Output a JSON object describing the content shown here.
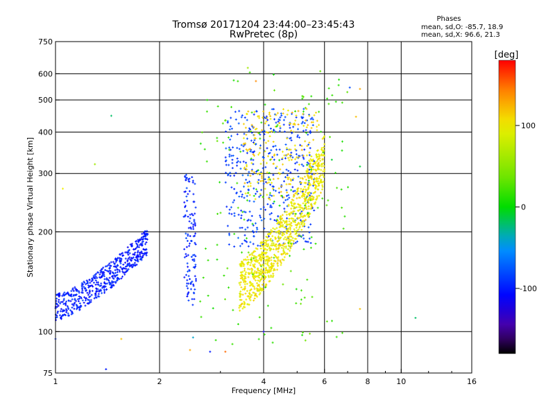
{
  "chart_data": {
    "type": "scatter",
    "title": "Tromsø 20171204 23:44:00–23:45:43",
    "subtitle": "RwPretec (8p)",
    "xlabel": "Frequency [MHz]",
    "ylabel": "Stationary phase Virtual Height [km]",
    "x_scale": "log",
    "y_scale": "log",
    "xlim": [
      1,
      16
    ],
    "ylim": [
      75,
      750
    ],
    "x_ticks": [
      1,
      2,
      4,
      6,
      8,
      10,
      16
    ],
    "y_ticks": [
      75,
      100,
      200,
      300,
      400,
      500,
      600,
      750
    ],
    "x_gridlines": [
      2,
      4,
      6,
      8,
      10
    ],
    "y_gridlines": [
      100,
      200,
      300,
      400,
      500,
      600
    ],
    "grid": true,
    "phase_stats": {
      "heading": "Phases",
      "o_line": "mean, sd,O: -85.7, 18.9",
      "x_line": "mean, sd,X:  96.6, 21.3"
    },
    "colorbar": {
      "label": "[deg]",
      "range": [
        -180,
        180
      ],
      "ticks": [
        100,
        0,
        -100
      ],
      "colors": [
        "#ff0000",
        "#ff8000",
        "#ffff00",
        "#00ff00",
        "#00ffff",
        "#0000ff",
        "#5000a0",
        "#000000"
      ]
    },
    "clusters": [
      {
        "name": "o-trace-low",
        "phase": -100,
        "f": [
          1.0,
          1.85
        ],
        "h": [
          108,
          200
        ],
        "n": 550,
        "shape": "rising"
      },
      {
        "name": "o-trace-mid",
        "phase": -95,
        "f": [
          2.35,
          2.55
        ],
        "h": [
          120,
          300
        ],
        "n": 120,
        "shape": "band"
      },
      {
        "name": "o-trace-f",
        "phase": -85,
        "f": [
          3.1,
          5.6
        ],
        "h": [
          180,
          470
        ],
        "n": 420,
        "shape": "cloud"
      },
      {
        "name": "x-trace-f",
        "phase": 100,
        "f": [
          3.4,
          6.0
        ],
        "h": [
          115,
          370
        ],
        "n": 900,
        "shape": "rising"
      },
      {
        "name": "x-trace-upper",
        "phase": 110,
        "f": [
          3.5,
          5.8
        ],
        "h": [
          250,
          470
        ],
        "n": 220,
        "shape": "cloud"
      },
      {
        "name": "mixed-scatter",
        "phase": 20,
        "f": [
          2.6,
          7.2
        ],
        "h": [
          90,
          620
        ],
        "n": 160,
        "shape": "cloud"
      }
    ],
    "isolated_points": [
      {
        "f": 1.45,
        "h": 448,
        "phase": -20
      },
      {
        "f": 1.3,
        "h": 320,
        "phase": 60
      },
      {
        "f": 1.55,
        "h": 95,
        "phase": 120
      },
      {
        "f": 1.4,
        "h": 77,
        "phase": -100
      },
      {
        "f": 2.5,
        "h": 96,
        "phase": -40
      },
      {
        "f": 2.45,
        "h": 88,
        "phase": 130
      },
      {
        "f": 2.8,
        "h": 87,
        "phase": -100
      },
      {
        "f": 3.1,
        "h": 87,
        "phase": 150
      },
      {
        "f": 3.6,
        "h": 625,
        "phase": 60
      },
      {
        "f": 3.8,
        "h": 570,
        "phase": 140
      },
      {
        "f": 4.0,
        "h": 100,
        "phase": -120
      },
      {
        "f": 7.1,
        "h": 545,
        "phase": -80
      },
      {
        "f": 7.6,
        "h": 540,
        "phase": 130
      },
      {
        "f": 7.6,
        "h": 315,
        "phase": -10
      },
      {
        "f": 7.6,
        "h": 117,
        "phase": 120
      },
      {
        "f": 7.4,
        "h": 445,
        "phase": 120
      },
      {
        "f": 11.0,
        "h": 110,
        "phase": -20
      },
      {
        "f": 6.3,
        "h": 330,
        "phase": -10
      },
      {
        "f": 1.0,
        "h": 95,
        "phase": -90
      },
      {
        "f": 1.05,
        "h": 270,
        "phase": 100
      }
    ]
  }
}
